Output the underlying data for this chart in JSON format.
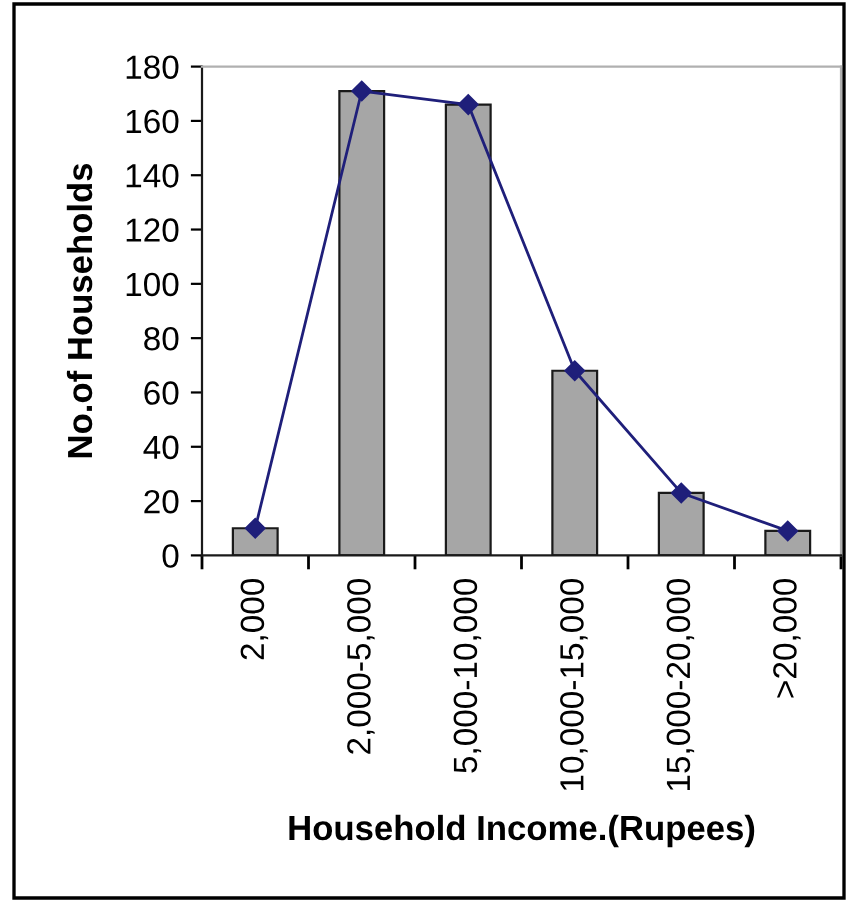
{
  "chart_data": {
    "type": "bar",
    "xlabel": "Household Income.(Rupees)",
    "ylabel": "No.of Households",
    "categories": [
      "2,000",
      "2,000-5,000",
      "5,000-10,000",
      "10,000-15,000",
      "15,000-20,000",
      ">20,000"
    ],
    "series": [
      {
        "color": "#a6a6a6",
        "values": [
          10,
          171,
          166,
          68,
          23,
          9
        ]
      },
      {
        "type": "line",
        "color": "#1f1f7a",
        "values": [
          10,
          171,
          166,
          68,
          23,
          9
        ]
      }
    ],
    "ylim": [
      0,
      180
    ],
    "yticks": [
      0,
      20,
      40,
      60,
      80,
      100,
      120,
      140,
      160,
      180
    ],
    "grid": false,
    "marker": "diamond",
    "line_style": "solid"
  }
}
